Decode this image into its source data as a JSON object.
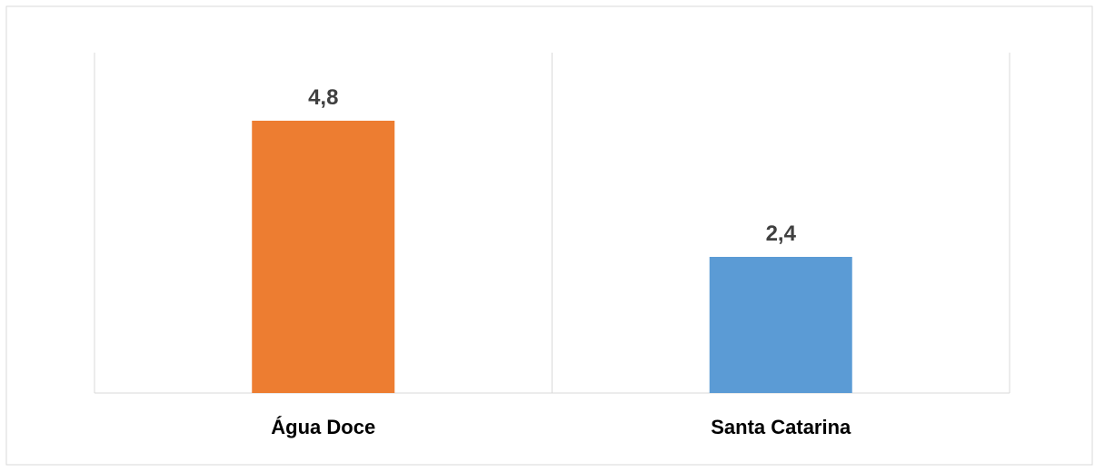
{
  "chart_data": {
    "type": "bar",
    "categories": [
      "Água Doce",
      "Santa Catarina"
    ],
    "values": [
      4.8,
      2.4
    ],
    "data_labels": [
      "4,8",
      "2,4"
    ],
    "title": "",
    "xlabel": "",
    "ylabel": "",
    "ylim": [
      0,
      6
    ],
    "grid": "vertical category separators",
    "legend": "none",
    "colors": [
      "#ED7D31",
      "#5B9BD5"
    ],
    "axis_color": "#D9D9D9",
    "label_color": "#404040",
    "category_label_color": "#000000"
  }
}
